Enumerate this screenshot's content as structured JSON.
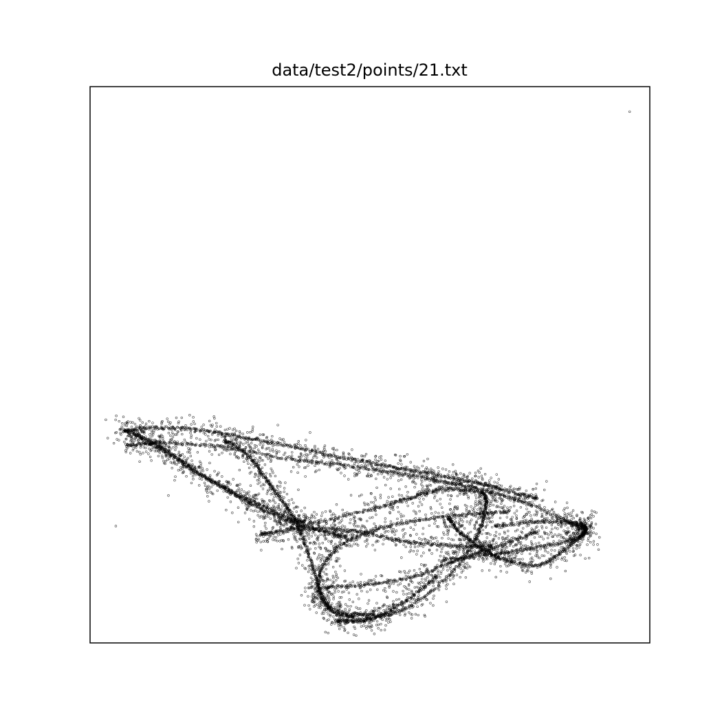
{
  "chart_data": {
    "type": "scatter",
    "title": "data/test2/points/21.txt",
    "xlabel": "",
    "ylabel": "",
    "xlim": [
      0,
      100
    ],
    "ylim": [
      0,
      100
    ],
    "grid": false,
    "axis_ticks": false,
    "marker": "hollow-circle",
    "marker_color": "#000000",
    "attractor_curves": [
      {
        "name": "",
        "points": [
          [
            6.5,
            35.5
          ],
          [
            14,
            36
          ],
          [
            25,
            35
          ],
          [
            36,
            33
          ],
          [
            45,
            32
          ],
          [
            55,
            30.5
          ],
          [
            63,
            29
          ],
          [
            70,
            27.5
          ],
          [
            77,
            25.5
          ],
          [
            85,
            22
          ],
          [
            88.5,
            20.3
          ],
          [
            86,
            18.5
          ],
          [
            79,
            17
          ],
          [
            72,
            16
          ],
          [
            63,
            15
          ]
        ]
      },
      {
        "name": "",
        "points": [
          [
            64,
            22.5
          ],
          [
            66,
            20
          ],
          [
            70,
            17
          ],
          [
            74,
            15
          ],
          [
            80,
            14
          ],
          [
            85,
            17
          ],
          [
            88.5,
            20.2
          ],
          [
            87,
            21.5
          ],
          [
            80,
            21.8
          ],
          [
            72,
            21
          ]
        ]
      },
      {
        "name": "",
        "points": [
          [
            6,
            38
          ],
          [
            12,
            38.7
          ],
          [
            20,
            38.2
          ],
          [
            27,
            37
          ],
          [
            35,
            35.5
          ],
          [
            44,
            33.5
          ],
          [
            52,
            32
          ],
          [
            60,
            30.5
          ],
          [
            68,
            29
          ],
          [
            74,
            27.5
          ],
          [
            80,
            26
          ]
        ]
      },
      {
        "name": "",
        "points": [
          [
            30.5,
            19.5
          ],
          [
            40,
            21.5
          ],
          [
            50,
            24
          ],
          [
            57,
            26
          ],
          [
            63,
            27.5
          ],
          [
            70,
            27
          ],
          [
            70.5,
            24
          ],
          [
            69,
            19
          ],
          [
            64,
            12
          ],
          [
            56,
            6
          ],
          [
            49,
            5
          ],
          [
            42,
            7
          ],
          [
            41,
            12
          ],
          [
            44,
            17
          ],
          [
            50,
            20
          ],
          [
            58,
            22
          ],
          [
            67,
            23
          ],
          [
            75,
            23.7
          ]
        ]
      },
      {
        "name": "",
        "points": [
          [
            30.5,
            19.5
          ],
          [
            40,
            20.5
          ],
          [
            48,
            20
          ],
          [
            56,
            18.3
          ],
          [
            64,
            17.5
          ],
          [
            72,
            17.3
          ]
        ]
      },
      {
        "name": "",
        "points": [
          [
            44,
            4
          ],
          [
            48,
            4
          ],
          [
            52,
            5
          ],
          [
            57,
            8
          ],
          [
            62,
            12
          ]
        ]
      },
      {
        "name": "",
        "points": [
          [
            6,
            38.3
          ],
          [
            11,
            36.2
          ],
          [
            16,
            33
          ],
          [
            22,
            29
          ],
          [
            28,
            25.5
          ],
          [
            34,
            22.5
          ],
          [
            40,
            20.5
          ],
          [
            46,
            19
          ]
        ]
      },
      {
        "name": "",
        "points": [
          [
            24,
            36.5
          ],
          [
            28,
            34
          ],
          [
            31,
            30
          ],
          [
            34,
            26
          ],
          [
            37,
            21.5
          ],
          [
            39,
            16
          ],
          [
            41,
            10
          ],
          [
            43,
            6
          ],
          [
            47,
            4.7
          ]
        ]
      },
      {
        "name": "",
        "points": [
          [
            42,
            10
          ],
          [
            50,
            10.5
          ],
          [
            58,
            12
          ],
          [
            66,
            15
          ],
          [
            73,
            17.5
          ],
          [
            80,
            20
          ]
        ]
      },
      {
        "name": "",
        "points": [
          [
            8,
            37.5
          ],
          [
            14,
            34
          ],
          [
            20,
            30
          ],
          [
            26,
            27
          ],
          [
            32,
            24
          ],
          [
            38,
            21.5
          ]
        ]
      }
    ],
    "outlier_points": [
      [
        96.4,
        95.5
      ],
      [
        4.6,
        21
      ],
      [
        14,
        26.5
      ]
    ]
  }
}
